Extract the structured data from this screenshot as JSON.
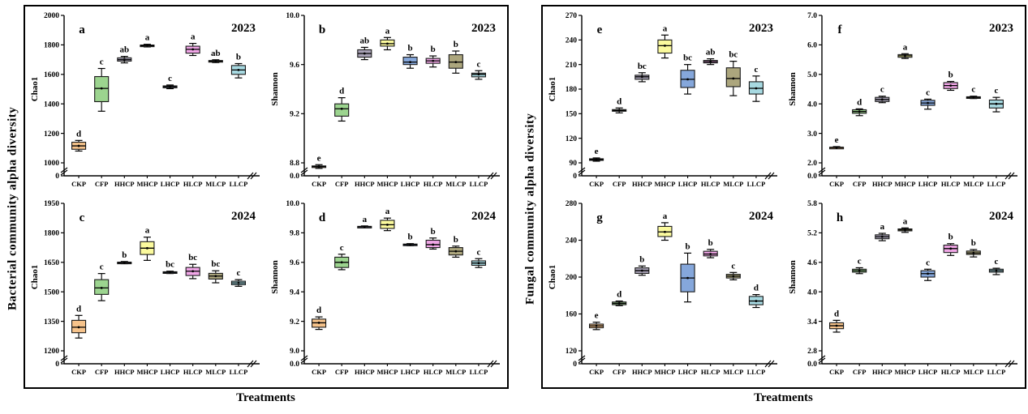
{
  "figure": {
    "treatments": [
      "CKP",
      "CFP",
      "HHCP",
      "MHCP",
      "LHCP",
      "HLCP",
      "MLCP",
      "LLCP"
    ],
    "treatment_colors": {
      "CKP": "#F6C38B",
      "CFP": "#9CD48F",
      "HHCP": "#A8A2B6",
      "MHCP": "#FBFA9D",
      "LHCP": "#85A7DB",
      "HLCP": "#F0A6E6",
      "MLCP": "#ACA67D",
      "LLCP": "#A7D9E1"
    },
    "box_border_color": "#1a1a1a",
    "groups": [
      {
        "label": "Bacterial community alpha diversity",
        "xlabel": "Treatments",
        "panels": [
          "a",
          "b",
          "c",
          "d"
        ]
      },
      {
        "label": "Fungal community alpha diversity",
        "xlabel": "Treatments",
        "panels": [
          "e",
          "f",
          "g",
          "h"
        ]
      }
    ]
  },
  "chart_data": [
    {
      "panel": "a",
      "type": "box",
      "group": "Bacterial community alpha diversity",
      "year": "2023",
      "ylabel": "Chao1",
      "xlabel": "Treatments",
      "axis_break_at_zero": true,
      "ytick_values": [
        1000,
        1200,
        1400,
        1600,
        1800,
        2000
      ],
      "ytick_labels": [
        "1000",
        "1200",
        "1400",
        "1600",
        "1800",
        "2000"
      ],
      "zero_label": "0",
      "categories": [
        "CKP",
        "CFP",
        "HHCP",
        "MHCP",
        "LHCP",
        "HLCP",
        "MLCP",
        "LLCP"
      ],
      "series": [
        {
          "name": "CKP",
          "letter": "d",
          "low": 1080,
          "q1": 1092,
          "median": 1115,
          "q3": 1140,
          "high": 1152
        },
        {
          "name": "CFP",
          "letter": "c",
          "low": 1350,
          "q1": 1415,
          "median": 1505,
          "q3": 1585,
          "high": 1640
        },
        {
          "name": "HHCP",
          "letter": "ab",
          "low": 1678,
          "q1": 1690,
          "median": 1700,
          "q3": 1712,
          "high": 1722
        },
        {
          "name": "MHCP",
          "letter": "a",
          "low": 1786,
          "q1": 1791,
          "median": 1795,
          "q3": 1799,
          "high": 1804
        },
        {
          "name": "LHCP",
          "letter": "c",
          "low": 1503,
          "q1": 1509,
          "median": 1516,
          "q3": 1522,
          "high": 1528
        },
        {
          "name": "HLCP",
          "letter": "a",
          "low": 1728,
          "q1": 1744,
          "median": 1770,
          "q3": 1791,
          "high": 1810
        },
        {
          "name": "MLCP",
          "letter": "ab",
          "low": 1680,
          "q1": 1685,
          "median": 1690,
          "q3": 1694,
          "high": 1699
        },
        {
          "name": "LLCP",
          "letter": "b",
          "low": 1576,
          "q1": 1600,
          "median": 1630,
          "q3": 1660,
          "high": 1673
        }
      ]
    },
    {
      "panel": "b",
      "type": "box",
      "group": "Bacterial community alpha diversity",
      "year": "2023",
      "ylabel": "Shannon",
      "xlabel": "Treatments",
      "axis_break_at_zero": true,
      "ytick_values": [
        8.8,
        9.2,
        9.6,
        10.0
      ],
      "ytick_labels": [
        "8.8",
        "9.2",
        "9.6",
        "10.0"
      ],
      "zero_label": "0.0",
      "categories": [
        "CKP",
        "CFP",
        "HHCP",
        "MHCP",
        "LHCP",
        "HLCP",
        "MLCP",
        "LLCP"
      ],
      "series": [
        {
          "name": "CKP",
          "letter": "e",
          "low": 8.755,
          "q1": 8.765,
          "median": 8.77,
          "q3": 8.775,
          "high": 8.785
        },
        {
          "name": "CFP",
          "letter": "d",
          "low": 9.14,
          "q1": 9.18,
          "median": 9.24,
          "q3": 9.28,
          "high": 9.33
        },
        {
          "name": "HHCP",
          "letter": "ab",
          "low": 9.64,
          "q1": 9.66,
          "median": 9.69,
          "q3": 9.72,
          "high": 9.74
        },
        {
          "name": "MHCP",
          "letter": "a",
          "low": 9.72,
          "q1": 9.75,
          "median": 9.77,
          "q3": 9.8,
          "high": 9.82
        },
        {
          "name": "LHCP",
          "letter": "b",
          "low": 9.57,
          "q1": 9.6,
          "median": 9.62,
          "q3": 9.66,
          "high": 9.68
        },
        {
          "name": "HLCP",
          "letter": "b",
          "low": 9.58,
          "q1": 9.61,
          "median": 9.63,
          "q3": 9.65,
          "high": 9.67
        },
        {
          "name": "MLCP",
          "letter": "b",
          "low": 9.53,
          "q1": 9.57,
          "median": 9.62,
          "q3": 9.68,
          "high": 9.71
        },
        {
          "name": "LLCP",
          "letter": "c",
          "low": 9.48,
          "q1": 9.5,
          "median": 9.52,
          "q3": 9.53,
          "high": 9.55
        }
      ]
    },
    {
      "panel": "c",
      "type": "box",
      "group": "Bacterial community alpha diversity",
      "year": "2024",
      "ylabel": "Chao1",
      "xlabel": "Treatments",
      "axis_break_at_zero": true,
      "ytick_values": [
        1200,
        1350,
        1500,
        1650,
        1800,
        1950
      ],
      "ytick_labels": [
        "1200",
        "1350",
        "1500",
        "1650",
        "1800",
        "1950"
      ],
      "zero_label": "0",
      "categories": [
        "CKP",
        "CFP",
        "HHCP",
        "MHCP",
        "LHCP",
        "HLCP",
        "MLCP",
        "LLCP"
      ],
      "series": [
        {
          "name": "CKP",
          "letter": "d",
          "low": 1265,
          "q1": 1292,
          "median": 1320,
          "q3": 1355,
          "high": 1380
        },
        {
          "name": "CFP",
          "letter": "c",
          "low": 1455,
          "q1": 1487,
          "median": 1520,
          "q3": 1562,
          "high": 1593
        },
        {
          "name": "HHCP",
          "letter": "b",
          "low": 1643,
          "q1": 1646,
          "median": 1648,
          "q3": 1651,
          "high": 1654
        },
        {
          "name": "MHCP",
          "letter": "a",
          "low": 1660,
          "q1": 1690,
          "median": 1722,
          "q3": 1755,
          "high": 1778
        },
        {
          "name": "LHCP",
          "letter": "bc",
          "low": 1593,
          "q1": 1596,
          "median": 1599,
          "q3": 1602,
          "high": 1605
        },
        {
          "name": "HLCP",
          "letter": "bc",
          "low": 1567,
          "q1": 1583,
          "median": 1605,
          "q3": 1624,
          "high": 1640
        },
        {
          "name": "MLCP",
          "letter": "bc",
          "low": 1546,
          "q1": 1565,
          "median": 1580,
          "q3": 1594,
          "high": 1607
        },
        {
          "name": "LLCP",
          "letter": "c",
          "low": 1528,
          "q1": 1536,
          "median": 1545,
          "q3": 1554,
          "high": 1562
        }
      ]
    },
    {
      "panel": "d",
      "type": "box",
      "group": "Bacterial community alpha diversity",
      "year": "2024",
      "ylabel": "Shannon",
      "xlabel": "Treatments",
      "axis_break_at_zero": true,
      "ytick_values": [
        9.0,
        9.2,
        9.4,
        9.6,
        9.8,
        10.0
      ],
      "ytick_labels": [
        "9.0",
        "9.2",
        "9.4",
        "9.6",
        "9.8",
        "10.0"
      ],
      "zero_label": "0.0",
      "categories": [
        "CKP",
        "CFP",
        "HHCP",
        "MHCP",
        "LHCP",
        "HLCP",
        "MLCP",
        "LLCP"
      ],
      "series": [
        {
          "name": "CKP",
          "letter": "d",
          "low": 9.145,
          "q1": 9.16,
          "median": 9.19,
          "q3": 9.215,
          "high": 9.23
        },
        {
          "name": "CFP",
          "letter": "c",
          "low": 9.55,
          "q1": 9.565,
          "median": 9.6,
          "q3": 9.635,
          "high": 9.655
        },
        {
          "name": "HHCP",
          "letter": "a",
          "low": 9.835,
          "q1": 9.838,
          "median": 9.841,
          "q3": 9.844,
          "high": 9.847
        },
        {
          "name": "MHCP",
          "letter": "a",
          "low": 9.815,
          "q1": 9.83,
          "median": 9.855,
          "q3": 9.885,
          "high": 9.9
        },
        {
          "name": "LHCP",
          "letter": "b",
          "low": 9.713,
          "q1": 9.716,
          "median": 9.72,
          "q3": 9.724,
          "high": 9.727
        },
        {
          "name": "HLCP",
          "letter": "b",
          "low": 9.69,
          "q1": 9.7,
          "median": 9.72,
          "q3": 9.75,
          "high": 9.765
        },
        {
          "name": "MLCP",
          "letter": "b",
          "low": 9.635,
          "q1": 9.65,
          "median": 9.675,
          "q3": 9.7,
          "high": 9.71
        },
        {
          "name": "LLCP",
          "letter": "c",
          "low": 9.565,
          "q1": 9.58,
          "median": 9.595,
          "q3": 9.61,
          "high": 9.625
        }
      ]
    },
    {
      "panel": "e",
      "type": "box",
      "group": "Fungal community alpha diversity",
      "year": "2023",
      "ylabel": "Chao1",
      "xlabel": "Treatments",
      "axis_break_at_zero": true,
      "ytick_values": [
        90,
        120,
        150,
        180,
        210,
        240,
        270
      ],
      "ytick_labels": [
        "90",
        "120",
        "150",
        "180",
        "210",
        "240",
        "270"
      ],
      "zero_label": "0",
      "categories": [
        "CKP",
        "CFP",
        "HHCP",
        "MHCP",
        "LHCP",
        "HLCP",
        "MLCP",
        "LLCP"
      ],
      "series": [
        {
          "name": "CKP",
          "letter": "e",
          "low": 92,
          "q1": 93,
          "median": 94,
          "q3": 95,
          "high": 96
        },
        {
          "name": "CFP",
          "letter": "d",
          "low": 151,
          "q1": 153,
          "median": 154,
          "q3": 155,
          "high": 157
        },
        {
          "name": "HHCP",
          "letter": "bc",
          "low": 189,
          "q1": 192,
          "median": 195,
          "q3": 197,
          "high": 200
        },
        {
          "name": "MHCP",
          "letter": "a",
          "low": 218,
          "q1": 224,
          "median": 233,
          "q3": 240,
          "high": 246
        },
        {
          "name": "LHCP",
          "letter": "bc",
          "low": 174,
          "q1": 182,
          "median": 192,
          "q3": 203,
          "high": 210
        },
        {
          "name": "HLCP",
          "letter": "ab",
          "low": 210,
          "q1": 212,
          "median": 213.5,
          "q3": 215,
          "high": 217
        },
        {
          "name": "MLCP",
          "letter": "bc",
          "low": 172,
          "q1": 183,
          "median": 193,
          "q3": 206,
          "high": 214
        },
        {
          "name": "LLCP",
          "letter": "c",
          "low": 165,
          "q1": 174,
          "median": 181,
          "q3": 189,
          "high": 196
        }
      ]
    },
    {
      "panel": "f",
      "type": "box",
      "group": "Fungal community alpha diversity",
      "year": "2023",
      "ylabel": "Shannon",
      "xlabel": "Treatments",
      "axis_break_at_zero": true,
      "ytick_values": [
        2.0,
        3.0,
        4.0,
        5.0,
        6.0,
        7.0
      ],
      "ytick_labels": [
        "2.0",
        "3.0",
        "4.0",
        "5.0",
        "6.0",
        "7.0"
      ],
      "zero_label": "0.0",
      "categories": [
        "CKP",
        "CFP",
        "HHCP",
        "MHCP",
        "LHCP",
        "HLCP",
        "MLCP",
        "LLCP"
      ],
      "series": [
        {
          "name": "CKP",
          "letter": "e",
          "low": 2.49,
          "q1": 2.51,
          "median": 2.52,
          "q3": 2.53,
          "high": 2.55
        },
        {
          "name": "CFP",
          "letter": "d",
          "low": 3.6,
          "q1": 3.68,
          "median": 3.74,
          "q3": 3.8,
          "high": 3.83
        },
        {
          "name": "HHCP",
          "letter": "c",
          "low": 4.04,
          "q1": 4.08,
          "median": 4.15,
          "q3": 4.22,
          "high": 4.26
        },
        {
          "name": "MHCP",
          "letter": "a",
          "low": 5.54,
          "q1": 5.58,
          "median": 5.63,
          "q3": 5.67,
          "high": 5.7
        },
        {
          "name": "LHCP",
          "letter": "c",
          "low": 3.82,
          "q1": 3.95,
          "median": 4.03,
          "q3": 4.12,
          "high": 4.16
        },
        {
          "name": "HLCP",
          "letter": "b",
          "low": 4.46,
          "q1": 4.52,
          "median": 4.62,
          "q3": 4.72,
          "high": 4.76
        },
        {
          "name": "MLCP",
          "letter": "c",
          "low": 4.18,
          "q1": 4.2,
          "median": 4.22,
          "q3": 4.24,
          "high": 4.26
        },
        {
          "name": "LLCP",
          "letter": "c",
          "low": 3.73,
          "q1": 3.86,
          "median": 4.0,
          "q3": 4.13,
          "high": 4.22
        }
      ]
    },
    {
      "panel": "g",
      "type": "box",
      "group": "Fungal community alpha diversity",
      "year": "2024",
      "ylabel": "Chao1",
      "xlabel": "Treatments",
      "axis_break_at_zero": true,
      "ytick_values": [
        120,
        160,
        200,
        240,
        280
      ],
      "ytick_labels": [
        "120",
        "160",
        "200",
        "240",
        "280"
      ],
      "zero_label": "0",
      "categories": [
        "CKP",
        "CFP",
        "HHCP",
        "MHCP",
        "LHCP",
        "HLCP",
        "MLCP",
        "LLCP"
      ],
      "series": [
        {
          "name": "CKP",
          "letter": "e",
          "low": 143,
          "q1": 145,
          "median": 147,
          "q3": 149,
          "high": 151
        },
        {
          "name": "CFP",
          "letter": "d",
          "low": 169,
          "q1": 170,
          "median": 171.5,
          "q3": 173,
          "high": 174
        },
        {
          "name": "HHCP",
          "letter": "b",
          "low": 202,
          "q1": 204,
          "median": 207,
          "q3": 210,
          "high": 212
        },
        {
          "name": "MHCP",
          "letter": "a",
          "low": 240,
          "q1": 244,
          "median": 249,
          "q3": 255,
          "high": 259
        },
        {
          "name": "LHCP",
          "letter": "b",
          "low": 173,
          "q1": 184,
          "median": 199,
          "q3": 214,
          "high": 226
        },
        {
          "name": "HLCP",
          "letter": "b",
          "low": 221,
          "q1": 223,
          "median": 225,
          "q3": 228,
          "high": 230
        },
        {
          "name": "MLCP",
          "letter": "c",
          "low": 197,
          "q1": 199,
          "median": 201,
          "q3": 203,
          "high": 205
        },
        {
          "name": "LLCP",
          "letter": "d",
          "low": 167,
          "q1": 170,
          "median": 174,
          "q3": 179,
          "high": 181
        }
      ]
    },
    {
      "panel": "h",
      "type": "box",
      "group": "Fungal community alpha diversity",
      "year": "2024",
      "ylabel": "Shannon",
      "xlabel": "Treatments",
      "axis_break_at_zero": true,
      "ytick_values": [
        2.8,
        3.4,
        4.0,
        4.6,
        5.2,
        5.8
      ],
      "ytick_labels": [
        "2.8",
        "3.4",
        "4.0",
        "4.6",
        "5.2",
        "5.8"
      ],
      "zero_label": "0.0",
      "categories": [
        "CKP",
        "CFP",
        "HHCP",
        "MHCP",
        "LHCP",
        "HLCP",
        "MLCP",
        "LLCP"
      ],
      "series": [
        {
          "name": "CKP",
          "letter": "d",
          "low": 3.18,
          "q1": 3.25,
          "median": 3.31,
          "q3": 3.37,
          "high": 3.42
        },
        {
          "name": "CFP",
          "letter": "c",
          "low": 4.37,
          "q1": 4.4,
          "median": 4.43,
          "q3": 4.46,
          "high": 4.49
        },
        {
          "name": "HHCP",
          "letter": "a",
          "low": 5.04,
          "q1": 5.08,
          "median": 5.12,
          "q3": 5.16,
          "high": 5.19
        },
        {
          "name": "MHCP",
          "letter": "a",
          "low": 5.21,
          "q1": 5.24,
          "median": 5.26,
          "q3": 5.28,
          "high": 5.3
        },
        {
          "name": "LHCP",
          "letter": "c",
          "low": 4.23,
          "q1": 4.3,
          "median": 4.37,
          "q3": 4.43,
          "high": 4.46
        },
        {
          "name": "HLCP",
          "letter": "b",
          "low": 4.74,
          "q1": 4.8,
          "median": 4.88,
          "q3": 4.95,
          "high": 4.98
        },
        {
          "name": "MLCP",
          "letter": "b",
          "low": 4.71,
          "q1": 4.76,
          "median": 4.79,
          "q3": 4.83,
          "high": 4.86
        },
        {
          "name": "LLCP",
          "letter": "c",
          "low": 4.35,
          "q1": 4.4,
          "median": 4.43,
          "q3": 4.46,
          "high": 4.48
        }
      ]
    }
  ]
}
